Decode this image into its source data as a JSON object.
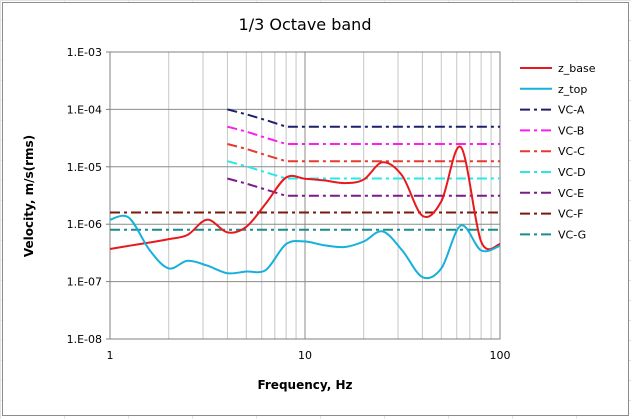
{
  "chart_data": {
    "type": "line",
    "title": "1/3 Octave band",
    "xlabel": "Frequency, Hz",
    "ylabel": "Velocity, m/s(rms)",
    "x_scale": "log",
    "y_scale": "log",
    "xlim": [
      1,
      100
    ],
    "ylim": [
      1e-08,
      0.001
    ],
    "grid": true,
    "legend": "right",
    "x_ticks": [
      {
        "value": 1,
        "label": "1"
      },
      {
        "value": 10,
        "label": "10"
      },
      {
        "value": 100,
        "label": "100"
      }
    ],
    "y_ticks": [
      {
        "value": 1e-08,
        "label": "1.E-08"
      },
      {
        "value": 1e-07,
        "label": "1.E-07"
      },
      {
        "value": 1e-06,
        "label": "1.E-06"
      },
      {
        "value": 1e-05,
        "label": "1.E-05"
      },
      {
        "value": 0.0001,
        "label": "1.E-04"
      },
      {
        "value": 0.001,
        "label": "1.E-03"
      }
    ],
    "series": [
      {
        "name": "z_base",
        "color": "#e8191c",
        "dash": "solid",
        "x": [
          1,
          1.25,
          1.6,
          2,
          2.5,
          3.15,
          4,
          5,
          6.3,
          8,
          10,
          12.5,
          16,
          20,
          25,
          31.5,
          40,
          50,
          63,
          80,
          100
        ],
        "y": [
          3.7e-07,
          4.2e-07,
          4.8e-07,
          5.5e-07,
          6.5e-07,
          1.2e-06,
          7.2e-07,
          9e-07,
          2.3e-06,
          6.5e-06,
          6.2e-06,
          5.8e-06,
          5.2e-06,
          6e-06,
          1.2e-05,
          7e-06,
          1.4e-06,
          2.5e-06,
          2.2e-05,
          5e-07,
          4.5e-07
        ]
      },
      {
        "name": "z_top",
        "color": "#16b0dc",
        "dash": "solid",
        "x": [
          1,
          1.25,
          1.6,
          2,
          2.5,
          3.15,
          4,
          5,
          6.3,
          8,
          10,
          12.5,
          16,
          20,
          25,
          31.5,
          40,
          50,
          63,
          80,
          100
        ],
        "y": [
          1.2e-06,
          1.3e-06,
          3.5e-07,
          1.7e-07,
          2.3e-07,
          1.9e-07,
          1.4e-07,
          1.5e-07,
          1.6e-07,
          4.5e-07,
          5e-07,
          4.3e-07,
          4e-07,
          5e-07,
          7.5e-07,
          3.5e-07,
          1.2e-07,
          1.7e-07,
          9.5e-07,
          3.5e-07,
          4.2e-07
        ]
      },
      {
        "name": "VC-A",
        "color": "#1f1f6e",
        "dash": "dashdot",
        "x": [
          4,
          5,
          6.3,
          8,
          100
        ],
        "y": [
          0.0001,
          8.2e-05,
          6.5e-05,
          5e-05,
          5e-05
        ]
      },
      {
        "name": "VC-B",
        "color": "#ff1cf0",
        "dash": "dashdot",
        "x": [
          4,
          5,
          6.3,
          8,
          100
        ],
        "y": [
          5e-05,
          4.1e-05,
          3.2e-05,
          2.5e-05,
          2.5e-05
        ]
      },
      {
        "name": "VC-C",
        "color": "#e83a2a",
        "dash": "dashdot",
        "x": [
          4,
          5,
          6.3,
          8,
          100
        ],
        "y": [
          2.5e-05,
          2.05e-05,
          1.6e-05,
          1.25e-05,
          1.25e-05
        ]
      },
      {
        "name": "VC-D",
        "color": "#26e8e8",
        "dash": "dashdot",
        "x": [
          4,
          5,
          6.3,
          8,
          100
        ],
        "y": [
          1.25e-05,
          1.02e-05,
          8e-06,
          6.25e-06,
          6.25e-06
        ]
      },
      {
        "name": "VC-E",
        "color": "#7a1a8c",
        "dash": "dashdot",
        "x": [
          4,
          5,
          6.3,
          8,
          100
        ],
        "y": [
          6.25e-06,
          5.1e-06,
          4e-06,
          3.12e-06,
          3.12e-06
        ]
      },
      {
        "name": "VC-F",
        "color": "#7a1a0e",
        "dash": "dashdot",
        "x": [
          1,
          100
        ],
        "y": [
          1.6e-06,
          1.6e-06
        ]
      },
      {
        "name": "VC-G",
        "color": "#1b8c8c",
        "dash": "dashdot",
        "x": [
          1,
          100
        ],
        "y": [
          8e-07,
          8e-07
        ]
      }
    ]
  }
}
